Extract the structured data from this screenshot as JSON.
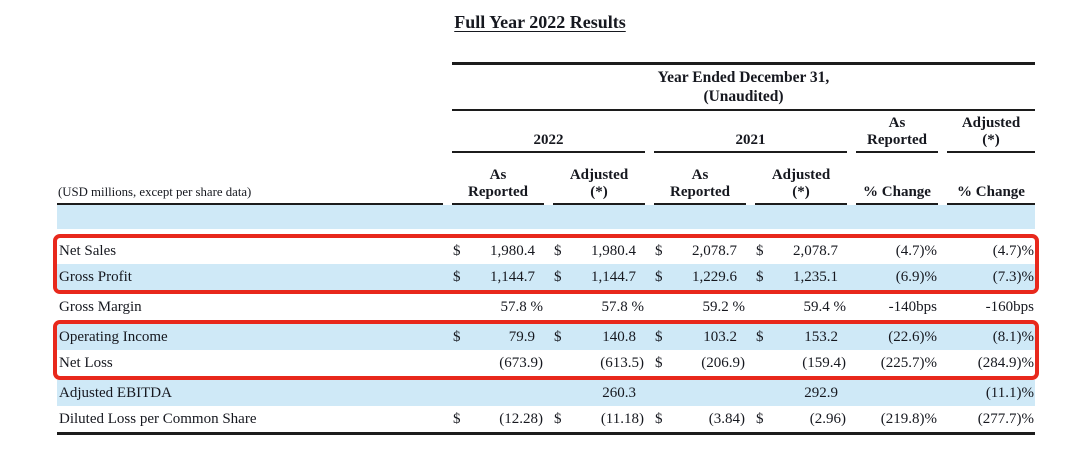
{
  "page_title": "Full Year 2022 Results",
  "accent_colors": {
    "row_highlight": "#cfe9f7",
    "annotation_red": "#e8281c",
    "rule_dark": "#1c1c1c"
  },
  "table": {
    "caption_line1": "Year Ended December 31,",
    "caption_line2": "(Unaudited)",
    "group_headers": [
      {
        "label": "2022",
        "span": 2
      },
      {
        "label": "2021",
        "span": 2
      },
      {
        "label": "As\nReported",
        "span": 1
      },
      {
        "label": "Adjusted\n(*)",
        "span": 1
      }
    ],
    "column_headers": [
      "As\nReported",
      "Adjusted\n(*)",
      "As\nReported",
      "Adjusted\n(*)",
      "% Change",
      "% Change"
    ],
    "row_label_note": "(USD millions, except per share data)",
    "red_boxes": [
      [
        0,
        1
      ],
      [
        3,
        4
      ]
    ],
    "rows": [
      {
        "label": "Net Sales",
        "highlight": false,
        "cells": [
          [
            "$",
            "1,980.4"
          ],
          [
            "$",
            "1,980.4"
          ],
          [
            "$",
            "2,078.7"
          ],
          [
            "$",
            "2,078.7"
          ],
          [
            "",
            "(4.7)%"
          ],
          [
            "",
            "(4.7)%"
          ]
        ]
      },
      {
        "label": "Gross Profit",
        "highlight": true,
        "cells": [
          [
            "$",
            "1,144.7"
          ],
          [
            "$",
            "1,144.7"
          ],
          [
            "$",
            "1,229.6"
          ],
          [
            "$",
            "1,235.1"
          ],
          [
            "",
            "(6.9)%"
          ],
          [
            "",
            "(7.3)%"
          ]
        ]
      },
      {
        "label": "Gross Margin",
        "highlight": false,
        "cells": [
          [
            "",
            "57.8 %"
          ],
          [
            "",
            "57.8 %"
          ],
          [
            "",
            "59.2 %"
          ],
          [
            "",
            "59.4 %"
          ],
          [
            "",
            "-140bps"
          ],
          [
            "",
            "-160bps"
          ]
        ]
      },
      {
        "label": "Operating Income",
        "highlight": true,
        "cells": [
          [
            "$",
            "79.9"
          ],
          [
            "$",
            "140.8"
          ],
          [
            "$",
            "103.2"
          ],
          [
            "$",
            "153.2"
          ],
          [
            "",
            "(22.6)%"
          ],
          [
            "",
            "(8.1)%"
          ]
        ]
      },
      {
        "label": "Net Loss",
        "highlight": false,
        "cells": [
          [
            "",
            "(673.9)"
          ],
          [
            "",
            "(613.5)"
          ],
          [
            "$",
            "(206.9)"
          ],
          [
            "",
            "(159.4)"
          ],
          [
            "",
            "(225.7)%"
          ],
          [
            "",
            "(284.9)%"
          ]
        ]
      },
      {
        "label": "Adjusted EBITDA",
        "highlight": true,
        "cells": [
          [
            "",
            ""
          ],
          [
            "",
            "260.3"
          ],
          [
            "",
            ""
          ],
          [
            "",
            "292.9"
          ],
          [
            "",
            ""
          ],
          [
            "",
            "(11.1)%"
          ]
        ]
      },
      {
        "label": "Diluted Loss per Common Share",
        "highlight": false,
        "cells": [
          [
            "$",
            "(12.28)"
          ],
          [
            "$",
            "(11.18)"
          ],
          [
            "$",
            "(3.84)"
          ],
          [
            "$",
            "(2.96)"
          ],
          [
            "",
            "(219.8)%"
          ],
          [
            "",
            "(277.7)%"
          ]
        ]
      }
    ]
  }
}
